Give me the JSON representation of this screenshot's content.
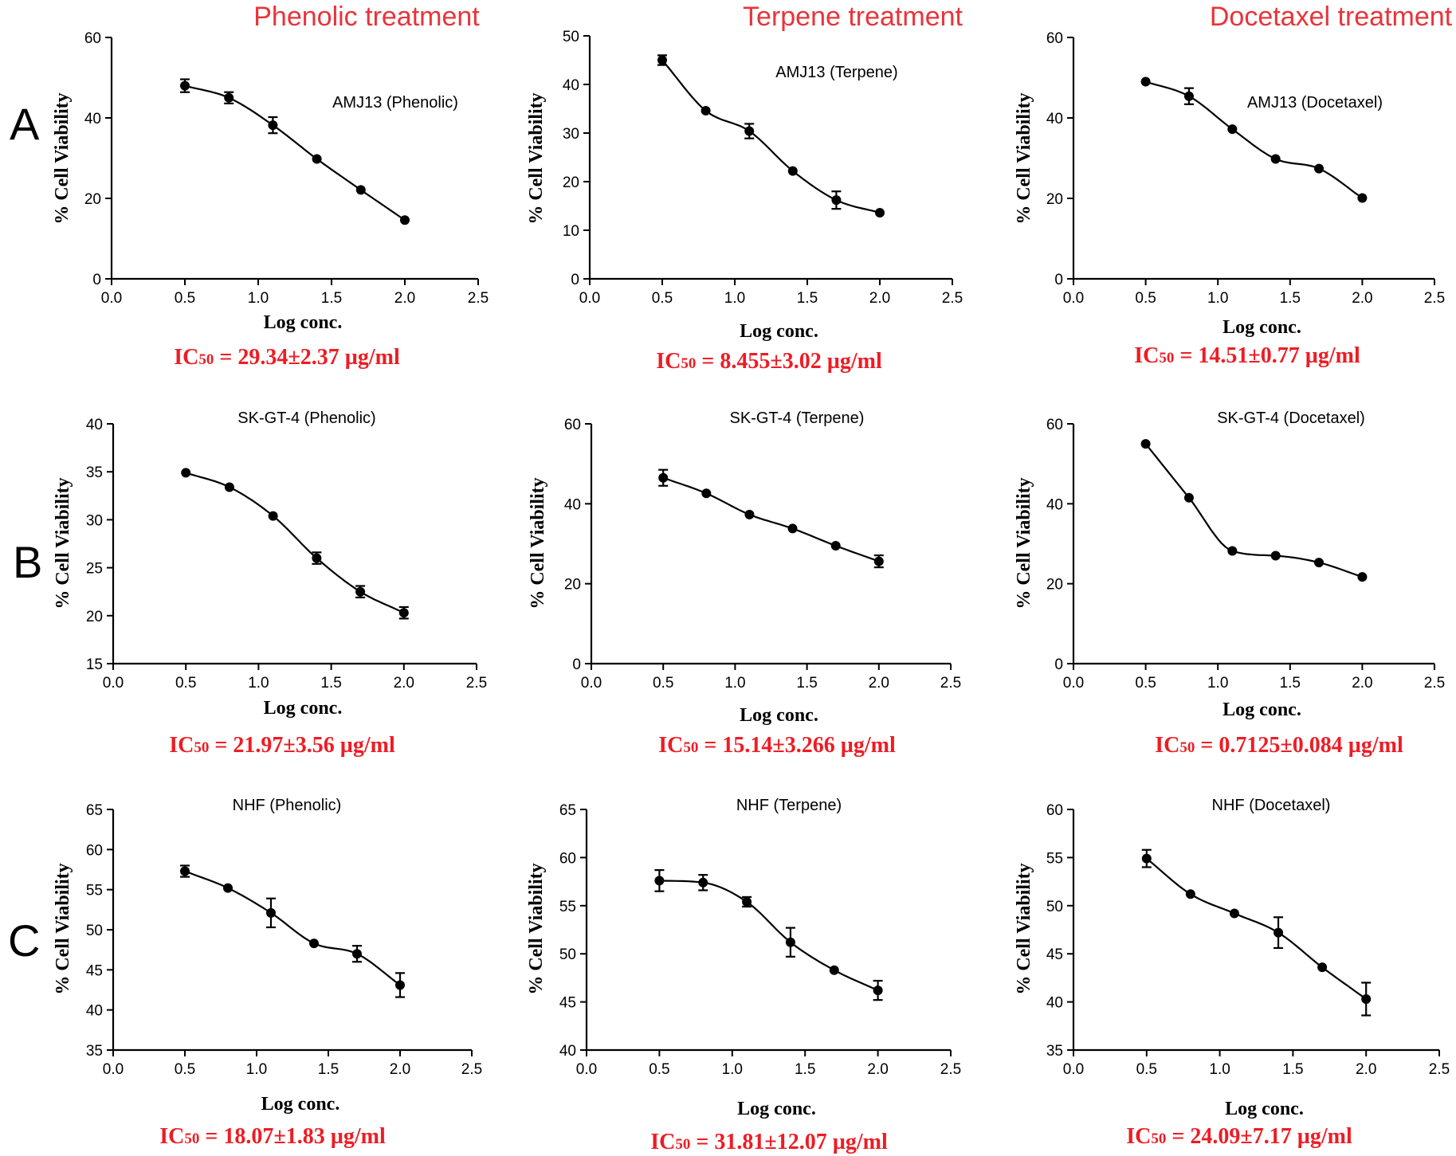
{
  "column_titles": [
    "Phenolic treatment",
    "Terpene treatment",
    "Docetaxel treatment"
  ],
  "row_labels": [
    "A",
    "B",
    "C"
  ],
  "axis_titles": {
    "x": "Log conc.",
    "y": "% Cell Viability"
  },
  "x_ticks": [
    "0.0",
    "0.5",
    "1.0",
    "1.5",
    "2.0",
    "2.5"
  ],
  "ic50": {
    "prefix": "IC",
    "sub": "50",
    "values": [
      [
        " = 29.34±2.37 µg/ml",
        " = 8.455±3.02 µg/ml",
        " = 14.51±0.77 µg/ml"
      ],
      [
        " = 21.97±3.56 µg/ml",
        " = 15.14±3.266 µg/ml",
        " = 0.7125±0.084 µg/ml"
      ],
      [
        " = 18.07±1.83 µg/ml",
        " = 31.81±12.07 µg/ml",
        " = 24.09±7.17 µg/ml"
      ]
    ]
  },
  "colors": {
    "heading_red": "#e8343a",
    "ic50_red": "#ee1c24",
    "ink": "#000000"
  },
  "chart_data": [
    {
      "type": "scatter",
      "title": "AMJ13 (Phenolic)",
      "xlabel": "Log conc.",
      "ylabel": "% Cell Viability",
      "xlim": [
        0,
        2.5
      ],
      "ylim": [
        0,
        60
      ],
      "y_ticks": [
        0,
        20,
        40,
        60
      ],
      "x": [
        0.5,
        0.8,
        1.1,
        1.4,
        1.7,
        2.0
      ],
      "y": [
        48,
        45,
        38.2,
        29.8,
        22.1,
        14.6
      ],
      "err": [
        1.6,
        1.4,
        2.0,
        0,
        0,
        0
      ],
      "fit": true
    },
    {
      "type": "scatter",
      "title": "AMJ13 (Terpene)",
      "xlabel": "Log conc.",
      "ylabel": "% Cell Viability",
      "xlim": [
        0,
        2.5
      ],
      "ylim": [
        0,
        50
      ],
      "y_ticks": [
        0,
        10,
        20,
        30,
        40,
        50
      ],
      "x": [
        0.5,
        0.8,
        1.1,
        1.4,
        1.7,
        2.0
      ],
      "y": [
        45,
        34.6,
        30.4,
        22.2,
        16.2,
        13.6
      ],
      "err": [
        1.0,
        0,
        1.5,
        0,
        1.8,
        0
      ],
      "fit": true
    },
    {
      "type": "scatter",
      "title": "AMJ13 (Docetaxel)",
      "xlabel": "Log conc.",
      "ylabel": "% Cell Viability",
      "xlim": [
        0,
        2.5
      ],
      "ylim": [
        0,
        60
      ],
      "y_ticks": [
        0,
        20,
        40,
        60
      ],
      "x": [
        0.5,
        0.8,
        1.1,
        1.4,
        1.7,
        2.0
      ],
      "y": [
        49,
        45.4,
        37.2,
        29.8,
        27.4,
        20.1
      ],
      "err": [
        0,
        2.0,
        0,
        0,
        0,
        0
      ],
      "fit": true
    },
    {
      "type": "scatter",
      "title": "SK-GT-4 (Phenolic)",
      "xlabel": "Log conc.",
      "ylabel": "% Cell Viability",
      "xlim": [
        0,
        2.5
      ],
      "ylim": [
        15,
        40
      ],
      "y_ticks": [
        15,
        20,
        25,
        30,
        35,
        40
      ],
      "x": [
        0.5,
        0.8,
        1.1,
        1.4,
        1.7,
        2.0
      ],
      "y": [
        34.9,
        33.4,
        30.4,
        26.0,
        22.5,
        20.3
      ],
      "err": [
        0,
        0,
        0,
        0.6,
        0.6,
        0.6
      ],
      "fit": true
    },
    {
      "type": "scatter",
      "title": "SK-GT-4 (Terpene)",
      "xlabel": "Log conc.",
      "ylabel": "% Cell Viability",
      "xlim": [
        0,
        2.5
      ],
      "ylim": [
        0,
        60
      ],
      "y_ticks": [
        0,
        20,
        40,
        60
      ],
      "x": [
        0.5,
        0.8,
        1.1,
        1.4,
        1.7,
        2.0
      ],
      "y": [
        46.5,
        42.6,
        37.3,
        33.8,
        29.5,
        25.6
      ],
      "err": [
        2.0,
        0,
        0,
        0,
        0,
        1.5
      ],
      "fit": true
    },
    {
      "type": "scatter",
      "title": "SK-GT-4 (Docetaxel)",
      "xlabel": "Log conc.",
      "ylabel": "% Cell Viability",
      "xlim": [
        0,
        2.5
      ],
      "ylim": [
        0,
        60
      ],
      "y_ticks": [
        0,
        20,
        40,
        60
      ],
      "x": [
        0.5,
        0.8,
        1.1,
        1.4,
        1.7,
        2.0
      ],
      "y": [
        55,
        41.5,
        28.2,
        27.0,
        25.3,
        21.7
      ],
      "err": [
        0,
        0,
        0,
        0,
        0,
        0
      ],
      "fit": true
    },
    {
      "type": "scatter",
      "title": "NHF (Phenolic)",
      "xlabel": "Log conc.",
      "ylabel": "% Cell Viability",
      "xlim": [
        0,
        2.5
      ],
      "ylim": [
        35,
        65
      ],
      "y_ticks": [
        35,
        40,
        45,
        50,
        55,
        60,
        65
      ],
      "x": [
        0.5,
        0.8,
        1.1,
        1.4,
        1.7,
        2.0
      ],
      "y": [
        57.3,
        55.2,
        52.1,
        48.3,
        47.0,
        43.1
      ],
      "err": [
        0.7,
        0,
        1.8,
        0,
        1.0,
        1.5
      ],
      "fit": true
    },
    {
      "type": "scatter",
      "title": "NHF (Terpene)",
      "xlabel": "Log conc.",
      "ylabel": "% Cell Viability",
      "xlim": [
        0,
        2.5
      ],
      "ylim": [
        40,
        65
      ],
      "y_ticks": [
        40,
        45,
        50,
        55,
        60,
        65
      ],
      "x": [
        0.5,
        0.8,
        1.1,
        1.4,
        1.7,
        2.0
      ],
      "y": [
        57.6,
        57.4,
        55.4,
        51.2,
        48.3,
        46.2
      ],
      "err": [
        1.1,
        0.8,
        0.5,
        1.5,
        0,
        1.0
      ],
      "fit": true
    },
    {
      "type": "scatter",
      "title": "NHF (Docetaxel)",
      "xlabel": "Log conc.",
      "ylabel": "% Cell Viability",
      "xlim": [
        0,
        2.5
      ],
      "ylim": [
        35,
        60
      ],
      "y_ticks": [
        35,
        40,
        45,
        50,
        55,
        60
      ],
      "x": [
        0.5,
        0.8,
        1.1,
        1.4,
        1.7,
        2.0
      ],
      "y": [
        54.9,
        51.2,
        49.2,
        47.2,
        43.6,
        40.3
      ],
      "err": [
        0.9,
        0,
        0,
        1.6,
        0,
        1.7
      ],
      "fit": true
    }
  ]
}
